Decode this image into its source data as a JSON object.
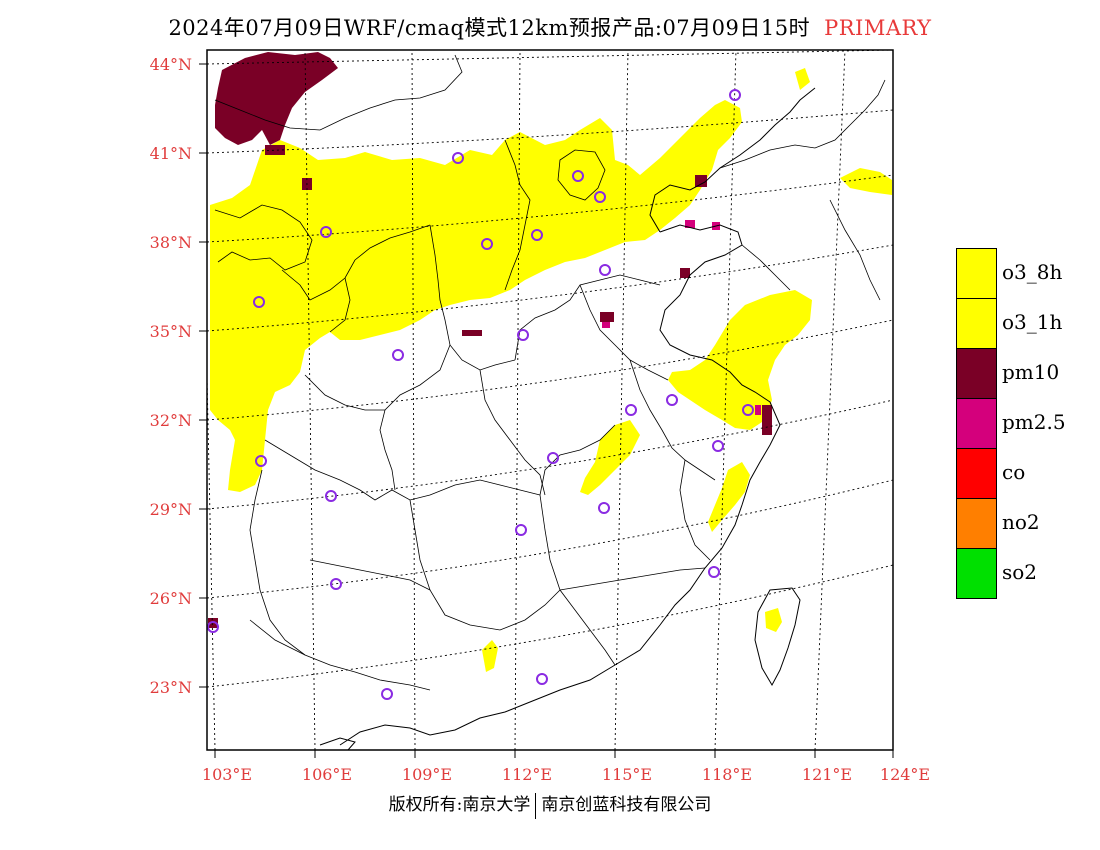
{
  "title": {
    "main": "2024年07月09日WRF/cmaq模式12km预报产品:07月09日15时",
    "tag": "PRIMARY"
  },
  "map": {
    "lat_labels": [
      "44°N",
      "41°N",
      "38°N",
      "35°N",
      "32°N",
      "29°N",
      "26°N",
      "23°N"
    ],
    "lon_labels": [
      "103°E",
      "106°E",
      "109°E",
      "112°E",
      "115°E",
      "118°E",
      "121°E",
      "124°E"
    ],
    "label_color": "#e03c3c"
  },
  "legend": [
    {
      "label": "o3_8h",
      "color": "#ffff00"
    },
    {
      "label": "o3_1h",
      "color": "#ffff00"
    },
    {
      "label": "pm10",
      "color": "#7a0026"
    },
    {
      "label": "pm2.5",
      "color": "#d4007c"
    },
    {
      "label": "co",
      "color": "#ff0000"
    },
    {
      "label": "no2",
      "color": "#ff7f00"
    },
    {
      "label": "so2",
      "color": "#00e000"
    }
  ],
  "footer": {
    "left": "版权所有:南京大学",
    "right": "南京创蓝科技有限公司"
  },
  "colors": {
    "ozone": "#ffff00",
    "pm10": "#7a0026",
    "pm25": "#d4007c",
    "station_marker": "#8a2be2"
  }
}
